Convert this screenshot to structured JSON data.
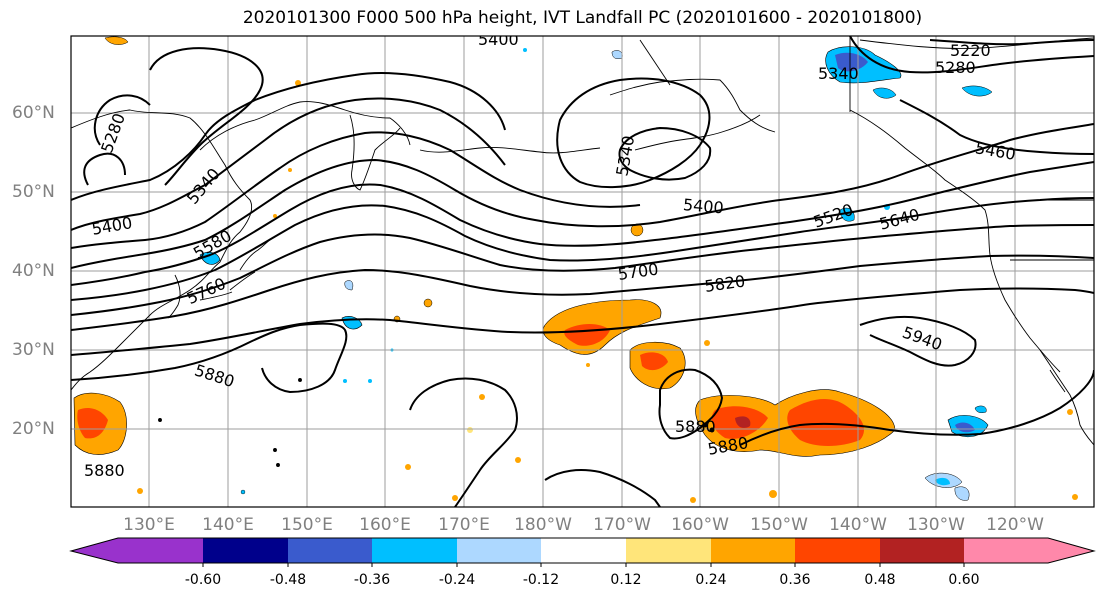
{
  "title": "2020101300 F000 500 hPa height, IVT Landfall PC (2020101600 - 2020101800)",
  "lat_labels": [
    "60°N",
    "50°N",
    "40°N",
    "30°N",
    "20°N"
  ],
  "lon_labels": [
    "130°E",
    "140°E",
    "150°E",
    "160°E",
    "170°E",
    "180°W",
    "170°W",
    "160°W",
    "150°W",
    "140°W",
    "130°W",
    "120°W"
  ],
  "contour_labels": [
    "5400",
    "5220",
    "5280",
    "5340",
    "5280",
    "5340",
    "5460",
    "5400",
    "5400",
    "5520",
    "5640",
    "5580",
    "5700",
    "5760",
    "5820",
    "5940",
    "5880",
    "5880",
    "5880",
    "5880"
  ],
  "colorbar": {
    "labels": [
      "-0.60",
      "-0.48",
      "-0.36",
      "-0.24",
      "-0.12",
      "0.12",
      "0.24",
      "0.36",
      "0.48",
      "0.60"
    ],
    "colors": [
      "#9932cc",
      "#00008b",
      "#3a5bcd",
      "#00bfff",
      "#add8ff",
      "#ffffff",
      "#ffe57a",
      "#ffa500",
      "#ff4500",
      "#b22222",
      "#ff88aa"
    ]
  }
}
